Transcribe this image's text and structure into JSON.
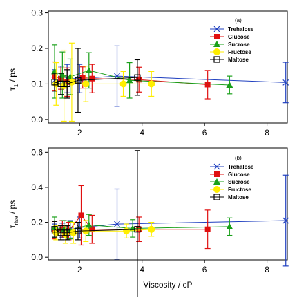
{
  "chart_data": [
    {
      "type": "scatter",
      "panel_label": "(a)",
      "ylabel_main": "τ",
      "ylabel_sub": "1",
      "ylabel_unit": " / ps",
      "xlabel": "",
      "xlim": [
        1.0,
        8.65
      ],
      "ylim": [
        -0.01,
        0.305
      ],
      "x_ticks": [
        2,
        4,
        6,
        8
      ],
      "y_ticks": [
        0.0,
        0.1,
        0.2,
        0.3
      ],
      "x_tick_labels": [
        "2",
        "4",
        "6",
        "8"
      ],
      "y_tick_labels": [
        "0.0",
        "0.1",
        "0.2",
        "0.3"
      ],
      "legend_position": "top-right",
      "series": [
        {
          "name": "Trehalose",
          "color": "#1f3fbf",
          "marker": "x",
          "x": [
            1.2,
            1.4,
            1.6,
            2.0,
            3.2,
            8.6
          ],
          "y": [
            0.11,
            0.11,
            0.115,
            0.115,
            0.122,
            0.104
          ],
          "err": [
            0.03,
            0.04,
            0.04,
            0.04,
            0.085,
            0.057
          ]
        },
        {
          "name": "Glucose",
          "color": "#e01010",
          "marker": "square",
          "x": [
            1.2,
            1.4,
            1.6,
            2.1,
            2.4,
            3.9,
            6.1
          ],
          "y": [
            0.122,
            0.115,
            0.105,
            0.118,
            0.115,
            0.112,
            0.098
          ],
          "err": [
            0.04,
            0.03,
            0.04,
            0.03,
            0.04,
            0.035,
            0.04
          ]
        },
        {
          "name": "Sucrose",
          "color": "#1aa01a",
          "marker": "triangle",
          "x": [
            1.2,
            1.45,
            1.7,
            2.3,
            3.6,
            6.8
          ],
          "y": [
            0.135,
            0.125,
            0.12,
            0.138,
            0.11,
            0.097
          ],
          "err": [
            0.075,
            0.065,
            0.05,
            0.05,
            0.05,
            0.025
          ]
        },
        {
          "name": "Fructose",
          "color": "#ffee00",
          "marker": "circle",
          "x": [
            1.25,
            1.5,
            1.75,
            2.2,
            3.4,
            4.3
          ],
          "y": [
            0.1,
            0.095,
            0.105,
            0.1,
            0.1,
            0.1
          ],
          "err": [
            0.06,
            0.1,
            0.11,
            0.05,
            0.035,
            0.035
          ]
        },
        {
          "name": "Maltose",
          "color": "#000000",
          "marker": "open-square",
          "x": [
            1.2,
            1.4,
            1.6,
            1.95,
            3.85
          ],
          "y": [
            0.105,
            0.1,
            0.1,
            0.11,
            0.118
          ],
          "err": [
            0.025,
            0.03,
            0.04,
            0.09,
            0.05
          ]
        }
      ]
    },
    {
      "type": "scatter",
      "panel_label": "(b)",
      "ylabel_main": "τ",
      "ylabel_sub": "rise",
      "ylabel_unit": " / ps",
      "xlabel": "Viscosity / cP",
      "xlim": [
        1.0,
        8.65
      ],
      "ylim": [
        -0.015,
        0.625
      ],
      "x_ticks": [
        2,
        4,
        6,
        8
      ],
      "y_ticks": [
        0.0,
        0.2,
        0.4,
        0.6
      ],
      "x_tick_labels": [
        "2",
        "4",
        "6",
        "8"
      ],
      "y_tick_labels": [
        "0.0",
        "0.2",
        "0.4",
        "0.6"
      ],
      "legend_position": "top-right",
      "series": [
        {
          "name": "Trehalose",
          "color": "#1f3fbf",
          "marker": "x",
          "x": [
            1.2,
            1.45,
            1.7,
            2.0,
            3.2,
            8.6
          ],
          "y": [
            0.15,
            0.155,
            0.16,
            0.17,
            0.19,
            0.21
          ],
          "err": [
            0.04,
            0.04,
            0.05,
            0.06,
            0.2,
            0.26
          ]
        },
        {
          "name": "Glucose",
          "color": "#e01010",
          "marker": "square",
          "x": [
            1.2,
            1.45,
            1.65,
            2.05,
            2.4,
            3.9,
            6.1
          ],
          "y": [
            0.155,
            0.16,
            0.15,
            0.24,
            0.16,
            0.16,
            0.16
          ],
          "err": [
            0.05,
            0.05,
            0.05,
            0.17,
            0.08,
            0.07,
            0.11
          ]
        },
        {
          "name": "Sucrose",
          "color": "#1aa01a",
          "marker": "triangle",
          "x": [
            1.2,
            1.5,
            1.7,
            2.3,
            3.7,
            6.8
          ],
          "y": [
            0.17,
            0.16,
            0.155,
            0.185,
            0.165,
            0.175
          ],
          "err": [
            0.06,
            0.05,
            0.05,
            0.06,
            0.05,
            0.05
          ]
        },
        {
          "name": "Fructose",
          "color": "#ffee00",
          "marker": "circle",
          "x": [
            1.25,
            1.55,
            1.8,
            2.2,
            3.5,
            4.3
          ],
          "y": [
            0.14,
            0.13,
            0.14,
            0.15,
            0.15,
            0.16
          ],
          "err": [
            0.04,
            0.05,
            0.06,
            0.06,
            0.04,
            0.04
          ]
        },
        {
          "name": "Maltose",
          "color": "#000000",
          "marker": "open-square",
          "x": [
            1.2,
            1.4,
            1.6,
            1.95,
            3.85
          ],
          "y": [
            0.16,
            0.14,
            0.14,
            0.15,
            0.16
          ],
          "err": [
            0.045,
            0.04,
            0.04,
            0.05,
            0.45
          ]
        }
      ]
    }
  ]
}
